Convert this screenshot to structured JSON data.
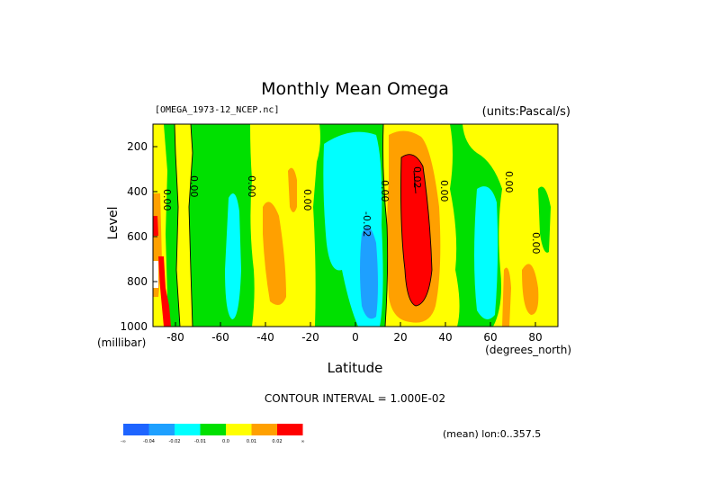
{
  "chart_data": {
    "type": "heatmap",
    "title": "Monthly Mean Omega",
    "dataset": "[OMEGA_1973-12_NCEP.nc]",
    "units": "(units:Pascal/s)",
    "xlabel": "Latitude",
    "x_units": "(degrees_north)",
    "ylabel": "Level",
    "y_units": "(millibar)",
    "xlim": [
      -90,
      90
    ],
    "ylim": [
      1000,
      100
    ],
    "x_ticks": [
      -80,
      -60,
      -40,
      -20,
      0,
      20,
      40,
      60,
      80
    ],
    "y_ticks": [
      200,
      400,
      600,
      800,
      1000
    ],
    "contour_interval": "CONTOUR INTERVAL = 1.000E-02",
    "averaging": "(mean) lon:0..357.5",
    "contour_labels": [
      "0.00",
      "0.00",
      "0.00",
      "0.00",
      "0.00",
      "-0.02",
      "0.00",
      "0.02",
      "0.00",
      "0.00",
      "0.00",
      "0.00"
    ],
    "colorbar": {
      "colors": [
        "#1e64ff",
        "#1ea0ff",
        "#00ffff",
        "#00e000",
        "#ffff00",
        "#ffa000",
        "#ff0000"
      ],
      "labels": [
        "-∞",
        "-0.04",
        "-0.02",
        "-0.01",
        "0.0",
        "0.01",
        "0.02",
        "∞"
      ]
    },
    "regions": [
      {
        "level": "+0.01..0.02",
        "color": "#ffa000",
        "lat_range": [
          15,
          35
        ],
        "p_range": [
          110,
          980
        ]
      },
      {
        "level": ">0.02",
        "color": "#ff0000",
        "lat_range": [
          20,
          32
        ],
        "p_range": [
          200,
          880
        ]
      },
      {
        "level": "-0.01..-0.02",
        "color": "#00ffff",
        "lat_range": [
          -5,
          12
        ],
        "p_range": [
          120,
          960
        ]
      },
      {
        "level": "<-0.02",
        "color": "#1ea0ff",
        "lat_range": [
          2,
          12
        ],
        "p_range": [
          480,
          950
        ]
      },
      {
        "level": "-0.01..-0.02",
        "color": "#00ffff",
        "lat_range": [
          54,
          64
        ],
        "p_range": [
          380,
          980
        ]
      },
      {
        "level": "-0.01..-0.02",
        "color": "#00ffff",
        "lat_range": [
          -62,
          -54
        ],
        "p_range": [
          380,
          980
        ]
      }
    ]
  }
}
